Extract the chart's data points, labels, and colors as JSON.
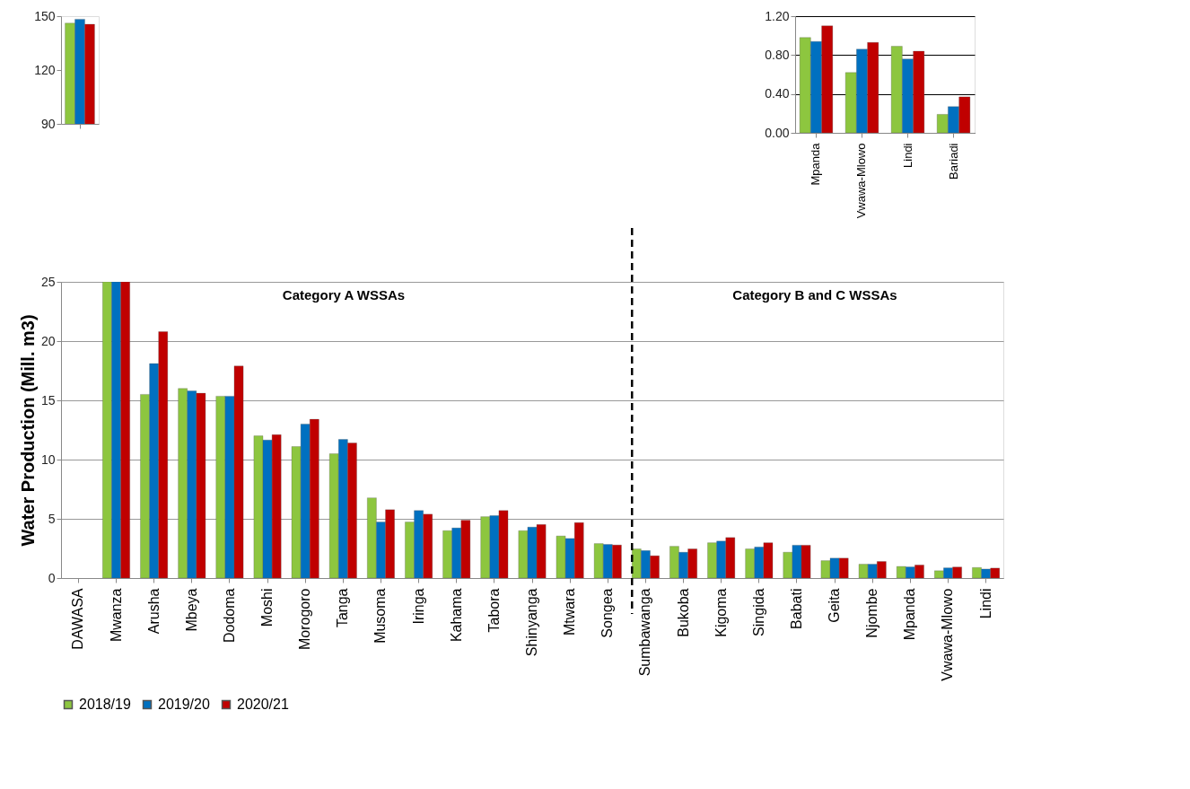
{
  "chart_data": [
    {
      "type": "bar",
      "categories": [
        null
      ],
      "tick_labels": "y",
      "ylim": [
        90,
        150
      ],
      "yticks": [
        90,
        120,
        150
      ],
      "grid": false,
      "legend": false,
      "series": [
        {
          "color": "#8dc63f",
          "values": [
            146.1
          ]
        },
        {
          "color": "#0070c0",
          "values": [
            148.3
          ]
        },
        {
          "color": "#c00000",
          "values": [
            145.5
          ]
        }
      ]
    },
    {
      "type": "bar",
      "ylabel": "Water Production (Mill. m3)",
      "categories": [
        "DAWASA",
        "Mwanza",
        "Arusha",
        "Mbeya",
        "Dodoma",
        "Moshi",
        "Morogoro",
        "Tanga",
        "Musoma",
        "Iringa",
        "Kahama",
        "Tabora",
        "Shinyanga",
        "Mtwara",
        "Songea",
        "Sumbawanga",
        "Bukoba",
        "Kigoma",
        "Singida",
        "Babati",
        "Geita",
        "Njombe",
        "Mpanda",
        "Vwawa-Mlowo",
        "Lindi"
      ],
      "ylim": [
        0,
        25
      ],
      "yticks": [
        0,
        5,
        10,
        15,
        20,
        25
      ],
      "grid": "y",
      "legend": "bottom",
      "annotations": [
        "Category  A WSSAs",
        "Category B and C WSSAs"
      ],
      "ref_lines": [
        {
          "axis": "x",
          "value": "Sumbawanga",
          "line_style": "dashed",
          "color": "#000000"
        }
      ],
      "series": [
        {
          "name": "2018/19",
          "color": "#8dc63f",
          "values": [
            null,
            25,
            15.5,
            16.0,
            15.35,
            12.0,
            11.1,
            10.5,
            6.77,
            4.73,
            4.0,
            5.18,
            4.0,
            3.55,
            2.91,
            2.46,
            2.68,
            2.98,
            2.46,
            2.18,
            1.47,
            1.17,
            0.98,
            0.62,
            0.89
          ]
        },
        {
          "name": "2019/20",
          "color": "#0070c0",
          "values": [
            null,
            25,
            18.1,
            15.8,
            15.35,
            11.65,
            13.0,
            11.7,
            4.73,
            5.7,
            4.23,
            5.27,
            4.3,
            3.34,
            2.84,
            2.32,
            2.18,
            3.12,
            2.62,
            2.77,
            1.68,
            1.17,
            0.94,
            0.86,
            0.76
          ]
        },
        {
          "name": "2020/21",
          "color": "#c00000",
          "values": [
            null,
            25,
            20.8,
            15.6,
            17.9,
            12.1,
            13.4,
            11.4,
            5.77,
            5.39,
            4.88,
            5.7,
            4.52,
            4.68,
            2.79,
            1.88,
            2.46,
            3.42,
            2.98,
            2.77,
            1.68,
            1.4,
            1.1,
            0.93,
            0.84
          ]
        }
      ]
    },
    {
      "type": "bar",
      "categories": [
        "Mpanda",
        "Vwawa-Mlowo",
        "Lindi",
        "Bariadi"
      ],
      "ylim": [
        0,
        1.2
      ],
      "yticks": [
        {
          "value": 0,
          "label": "0.00"
        },
        {
          "value": 0.4,
          "label": "0.40"
        },
        {
          "value": 0.8,
          "label": "0.80"
        },
        {
          "value": 1.2,
          "label": "1.20"
        }
      ],
      "grid": "y",
      "legend": false,
      "series": [
        {
          "color": "#8dc63f",
          "values": [
            0.98,
            0.62,
            0.89,
            0.19
          ]
        },
        {
          "color": "#0070c0",
          "values": [
            0.94,
            0.86,
            0.76,
            0.27
          ]
        },
        {
          "color": "#c00000",
          "values": [
            1.1,
            0.93,
            0.84,
            0.37
          ]
        }
      ]
    }
  ]
}
